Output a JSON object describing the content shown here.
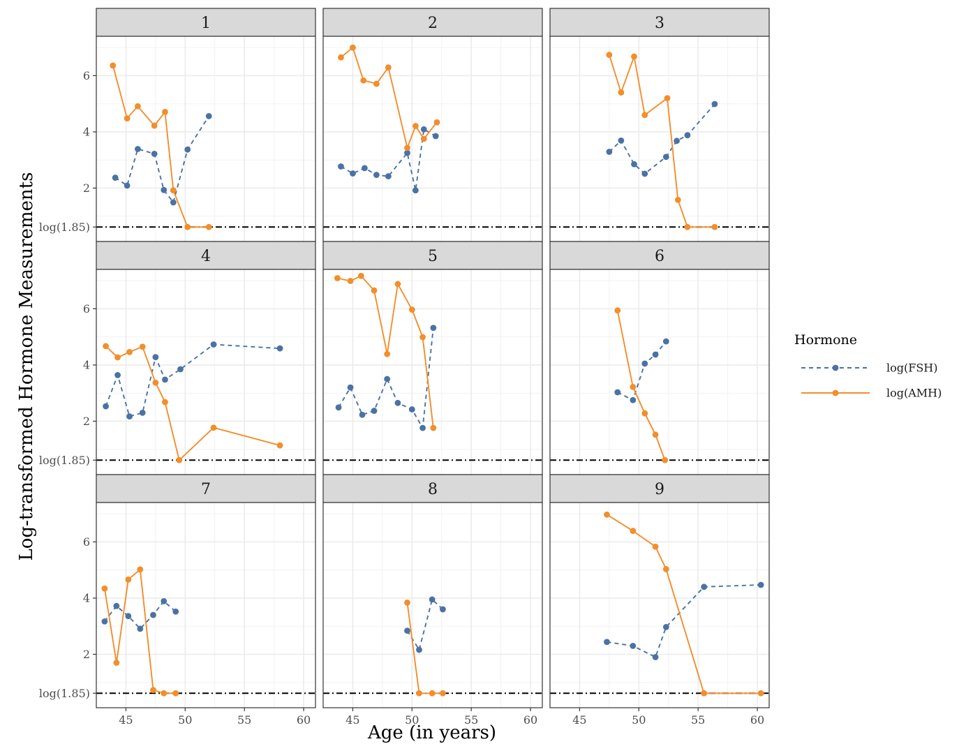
{
  "chart_data": {
    "type": "line",
    "ylabel": "Log-transformed Hormone Measurements",
    "xlabel": "Age (in years)",
    "xlim": [
      42.5,
      61
    ],
    "ylim": [
      0.1,
      7.4
    ],
    "x_ticks": [
      45,
      50,
      55,
      60
    ],
    "x_tick_labels": [
      "45",
      "50",
      "55",
      "60"
    ],
    "y_ticks": [
      2,
      4,
      6
    ],
    "y_tick_labels": [
      "2",
      "4",
      "6"
    ],
    "reference_line": {
      "value": 0.615,
      "label": "log(1.85)",
      "style": "dot-dash"
    },
    "legend": {
      "title": "Hormone",
      "entries": [
        {
          "key": "fsh",
          "label": "log(FSH)",
          "color": "#4a72a4",
          "line": "dashed"
        },
        {
          "key": "amh",
          "label": "log(AMH)",
          "color": "#f28e2b",
          "line": "solid"
        }
      ]
    },
    "panels": [
      {
        "label": "1",
        "series": [
          {
            "name": "log(FSH)",
            "x": [
              44.1,
              45.1,
              46.0,
              47.4,
              48.2,
              49.0,
              50.2,
              52.0
            ],
            "y": [
              2.37,
              2.09,
              3.39,
              3.22,
              1.93,
              1.49,
              3.37,
              4.56
            ]
          },
          {
            "name": "log(AMH)",
            "x": [
              43.9,
              45.1,
              46.0,
              47.4,
              48.3,
              49.0,
              50.2,
              52.0
            ],
            "y": [
              6.36,
              4.48,
              4.91,
              4.22,
              4.71,
              1.92,
              0.615,
              0.615
            ]
          }
        ]
      },
      {
        "label": "2",
        "series": [
          {
            "name": "log(FSH)",
            "x": [
              44.0,
              45.0,
              46.0,
              47.0,
              48.0,
              49.6,
              50.3,
              51.0,
              52.0
            ],
            "y": [
              2.77,
              2.52,
              2.71,
              2.47,
              2.42,
              3.25,
              1.92,
              4.09,
              3.85
            ]
          },
          {
            "name": "log(AMH)",
            "x": [
              44.0,
              45.0,
              45.9,
              47.0,
              48.0,
              49.6,
              50.3,
              51.0,
              52.1
            ],
            "y": [
              6.65,
              7.0,
              5.83,
              5.71,
              6.29,
              3.43,
              4.21,
              3.75,
              4.34
            ]
          }
        ]
      },
      {
        "label": "3",
        "series": [
          {
            "name": "log(FSH)",
            "x": [
              47.5,
              48.5,
              49.6,
              50.5,
              52.3,
              53.2,
              54.1,
              56.4
            ],
            "y": [
              3.29,
              3.69,
              2.85,
              2.51,
              3.11,
              3.68,
              3.88,
              4.99
            ]
          },
          {
            "name": "log(AMH)",
            "x": [
              47.5,
              48.5,
              49.6,
              50.5,
              52.4,
              53.3,
              54.1,
              56.4
            ],
            "y": [
              6.74,
              5.4,
              6.68,
              4.6,
              5.2,
              1.58,
              0.615,
              0.615
            ]
          }
        ]
      },
      {
        "label": "4",
        "series": [
          {
            "name": "log(FSH)",
            "x": [
              43.3,
              44.3,
              45.3,
              46.4,
              47.5,
              48.3,
              49.6,
              52.4,
              58.0
            ],
            "y": [
              2.53,
              3.64,
              2.17,
              2.3,
              4.28,
              3.48,
              3.85,
              4.73,
              4.59
            ]
          },
          {
            "name": "log(AMH)",
            "x": [
              43.3,
              44.3,
              45.3,
              46.4,
              47.5,
              48.3,
              49.5,
              52.4,
              58.0
            ],
            "y": [
              4.67,
              4.27,
              4.46,
              4.65,
              3.37,
              2.68,
              0.615,
              1.77,
              1.14
            ]
          }
        ]
      },
      {
        "label": "5",
        "series": [
          {
            "name": "log(FSH)",
            "x": [
              43.8,
              44.8,
              45.8,
              46.8,
              47.9,
              48.8,
              50.0,
              50.9,
              51.8
            ],
            "y": [
              2.49,
              3.2,
              2.23,
              2.37,
              3.5,
              2.65,
              2.42,
              1.76,
              5.32
            ]
          },
          {
            "name": "log(AMH)",
            "x": [
              43.7,
              44.8,
              45.7,
              46.8,
              47.9,
              48.8,
              50.0,
              50.9,
              51.8
            ],
            "y": [
              7.09,
              6.99,
              7.17,
              6.65,
              4.39,
              6.88,
              5.97,
              4.99,
              1.76
            ]
          }
        ]
      },
      {
        "label": "6",
        "series": [
          {
            "name": "log(FSH)",
            "x": [
              48.2,
              49.5,
              50.5,
              51.4,
              52.3
            ],
            "y": [
              3.03,
              2.75,
              4.05,
              4.37,
              4.84
            ]
          },
          {
            "name": "log(AMH)",
            "x": [
              48.2,
              49.5,
              50.5,
              51.4,
              52.2
            ],
            "y": [
              5.94,
              3.22,
              2.28,
              1.52,
              0.615
            ]
          }
        ]
      },
      {
        "label": "7",
        "series": [
          {
            "name": "log(FSH)",
            "x": [
              43.2,
              44.2,
              45.2,
              46.2,
              47.3,
              48.2,
              49.2
            ],
            "y": [
              3.17,
              3.72,
              3.36,
              2.91,
              3.4,
              3.89,
              3.52
            ]
          },
          {
            "name": "log(AMH)",
            "x": [
              43.2,
              44.2,
              45.2,
              46.2,
              47.3,
              48.2,
              49.2
            ],
            "y": [
              4.34,
              1.7,
              4.66,
              5.02,
              0.73,
              0.615,
              0.615
            ]
          }
        ]
      },
      {
        "label": "8",
        "series": [
          {
            "name": "log(FSH)",
            "x": [
              49.6,
              50.6,
              51.7,
              52.6
            ],
            "y": [
              2.84,
              2.16,
              3.95,
              3.6
            ]
          },
          {
            "name": "log(AMH)",
            "x": [
              49.6,
              50.6,
              51.7,
              52.6
            ],
            "y": [
              3.84,
              0.615,
              0.615,
              0.615
            ]
          }
        ]
      },
      {
        "label": "9",
        "series": [
          {
            "name": "log(FSH)",
            "x": [
              47.3,
              49.5,
              51.4,
              52.3,
              55.5,
              60.3
            ],
            "y": [
              2.44,
              2.3,
              1.9,
              2.97,
              4.4,
              4.47
            ]
          },
          {
            "name": "log(AMH)",
            "x": [
              47.3,
              49.5,
              51.4,
              52.3,
              55.5,
              60.3
            ],
            "y": [
              6.97,
              6.39,
              5.83,
              5.03,
              0.615,
              0.615
            ]
          }
        ]
      }
    ]
  }
}
